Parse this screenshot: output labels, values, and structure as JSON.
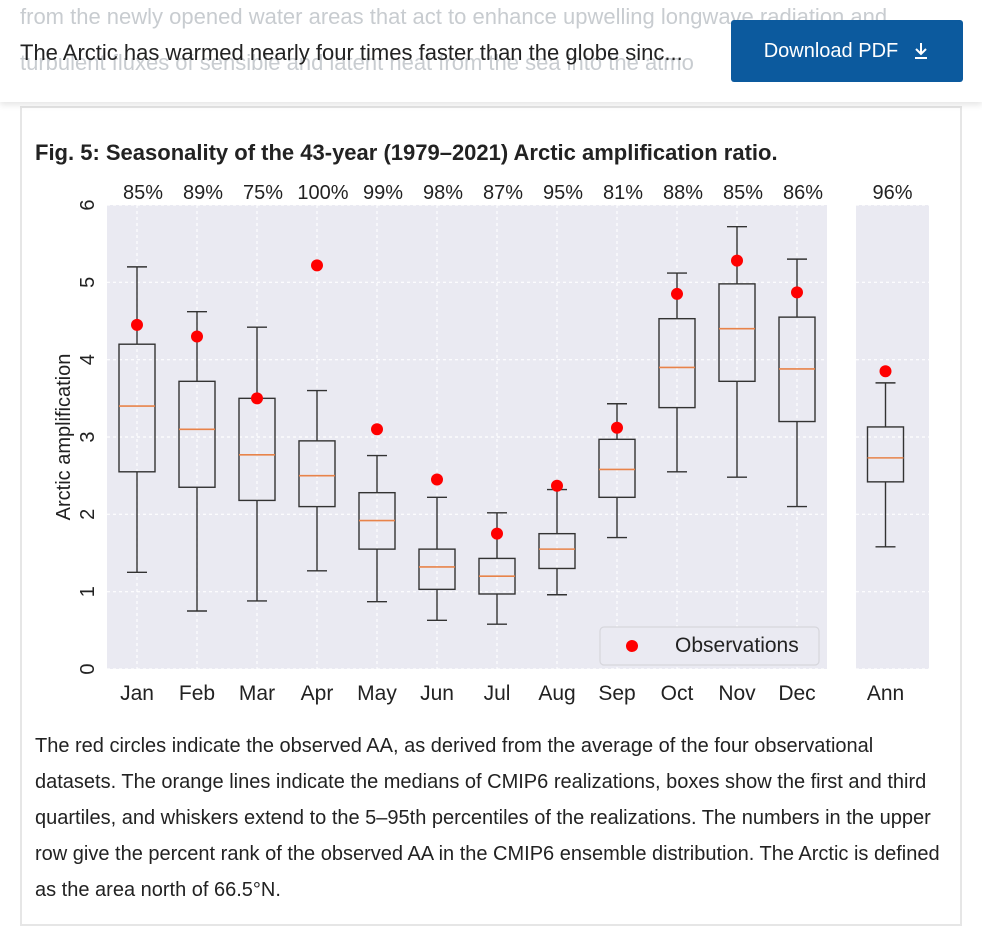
{
  "page": {
    "ghost_top": "from the newly opened water areas that act to enhance upwelling longwave radiation and",
    "ghost_bottom": "turbulent fluxes of sensible and latent heat from the sea into the atmo",
    "doc_title": "The Arctic has warmed nearly four times faster than the globe sinc...",
    "download_label": "Download PDF",
    "figure_title": "Fig. 5: Seasonality of the 43-year (1979–2021) Arctic amplification ratio.",
    "caption": "The red circles indicate the observed AA, as derived from the average of the four observational datasets. The orange lines indicate the medians of CMIP6 realizations, boxes show the first and third quartiles, and whiskers extend to the 5–95th percentiles of the realizations. The numbers in the upper row give the percent rank of the observed AA in the CMIP6 ensemble distribution. The Arctic is defined as the area north of 66.5°N.",
    "colors": {
      "button": "#0c5a9e",
      "panel": "#eaeaf2",
      "median": "#e8834a",
      "observation": "#ff0000"
    }
  },
  "chart_data": {
    "type": "box",
    "ylabel": "Arctic amplification",
    "ylim": [
      0,
      6
    ],
    "yticks": [
      0,
      1,
      2,
      3,
      4,
      5,
      6
    ],
    "grid": true,
    "legend": {
      "label": "Observations",
      "placement": "lower-right"
    },
    "categories": [
      "Jan",
      "Feb",
      "Mar",
      "Apr",
      "May",
      "Jun",
      "Jul",
      "Aug",
      "Sep",
      "Oct",
      "Nov",
      "Dec"
    ],
    "percent_rank": [
      "85%",
      "89%",
      "75%",
      "100%",
      "99%",
      "98%",
      "87%",
      "95%",
      "81%",
      "88%",
      "85%",
      "86%"
    ],
    "boxes": [
      {
        "whisker_low": 1.25,
        "q1": 2.55,
        "median": 3.4,
        "q3": 4.2,
        "whisker_high": 5.2,
        "observed": 4.45
      },
      {
        "whisker_low": 0.75,
        "q1": 2.35,
        "median": 3.1,
        "q3": 3.72,
        "whisker_high": 4.62,
        "observed": 4.3
      },
      {
        "whisker_low": 0.88,
        "q1": 2.18,
        "median": 2.77,
        "q3": 3.5,
        "whisker_high": 4.42,
        "observed": 3.5
      },
      {
        "whisker_low": 1.27,
        "q1": 2.1,
        "median": 2.5,
        "q3": 2.95,
        "whisker_high": 3.6,
        "observed": 5.22
      },
      {
        "whisker_low": 0.87,
        "q1": 1.55,
        "median": 1.92,
        "q3": 2.28,
        "whisker_high": 2.76,
        "observed": 3.1
      },
      {
        "whisker_low": 0.63,
        "q1": 1.03,
        "median": 1.32,
        "q3": 1.55,
        "whisker_high": 2.22,
        "observed": 2.45
      },
      {
        "whisker_low": 0.58,
        "q1": 0.97,
        "median": 1.2,
        "q3": 1.43,
        "whisker_high": 2.02,
        "observed": 1.75
      },
      {
        "whisker_low": 0.96,
        "q1": 1.3,
        "median": 1.55,
        "q3": 1.75,
        "whisker_high": 2.32,
        "observed": 2.37
      },
      {
        "whisker_low": 1.7,
        "q1": 2.22,
        "median": 2.58,
        "q3": 2.97,
        "whisker_high": 3.43,
        "observed": 3.12
      },
      {
        "whisker_low": 2.55,
        "q1": 3.38,
        "median": 3.9,
        "q3": 4.53,
        "whisker_high": 5.12,
        "observed": 4.85
      },
      {
        "whisker_low": 2.48,
        "q1": 3.72,
        "median": 4.4,
        "q3": 4.98,
        "whisker_high": 5.72,
        "observed": 5.28
      },
      {
        "whisker_low": 2.1,
        "q1": 3.2,
        "median": 3.88,
        "q3": 4.55,
        "whisker_high": 5.3,
        "observed": 4.87
      }
    ],
    "annual": {
      "category": "Ann",
      "percent_rank": "96%",
      "whisker_low": 1.58,
      "q1": 2.42,
      "median": 2.73,
      "q3": 3.13,
      "whisker_high": 3.7,
      "observed": 3.85
    }
  }
}
